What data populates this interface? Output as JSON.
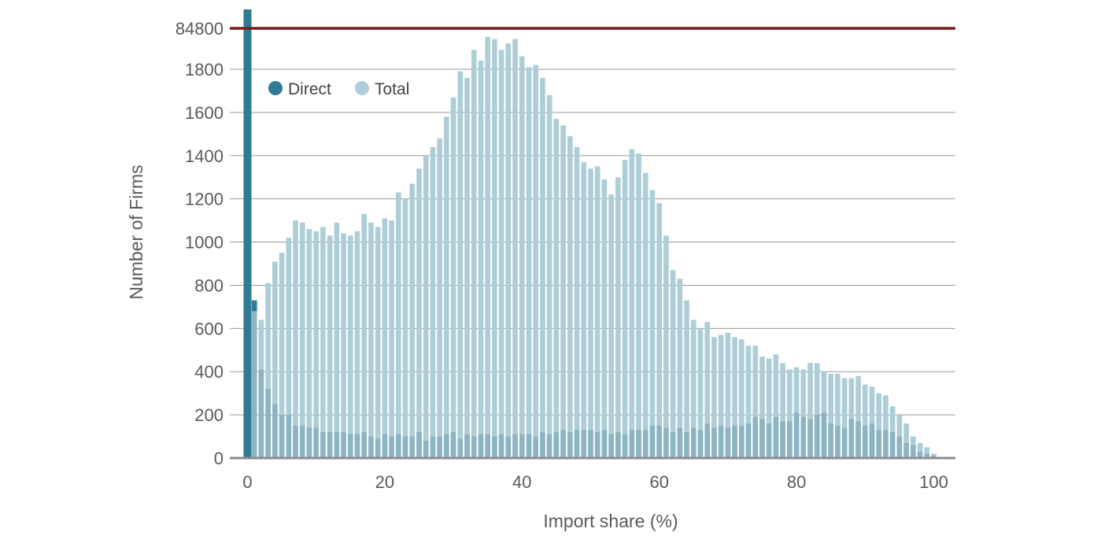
{
  "chart_data": {
    "type": "bar",
    "xlabel": "Import share (%)",
    "ylabel": "Number of Firms",
    "xlim": [
      -1,
      101
    ],
    "ylim": [
      0,
      2000
    ],
    "x_ticks": [
      0,
      20,
      40,
      60,
      80,
      100
    ],
    "y_ticks": [
      0,
      200,
      400,
      600,
      800,
      1000,
      1200,
      1400,
      1600,
      1800
    ],
    "axis_break": {
      "label": "84800",
      "bar_label": "Direct",
      "bar_x": 0
    },
    "grid": true,
    "legend": {
      "position": "top-left",
      "items": [
        "Direct",
        "Total"
      ]
    },
    "colors": {
      "Direct": "#2f7b93",
      "Total": "#adcdd7",
      "overlap": "#8cb4c3",
      "break_line": "#7a1c1c",
      "grid": "#9a9a9a"
    },
    "x": [
      0,
      1,
      2,
      3,
      4,
      5,
      6,
      7,
      8,
      9,
      10,
      11,
      12,
      13,
      14,
      15,
      16,
      17,
      18,
      19,
      20,
      21,
      22,
      23,
      24,
      25,
      26,
      27,
      28,
      29,
      30,
      31,
      32,
      33,
      34,
      35,
      36,
      37,
      38,
      39,
      40,
      41,
      42,
      43,
      44,
      45,
      46,
      47,
      48,
      49,
      50,
      51,
      52,
      53,
      54,
      55,
      56,
      57,
      58,
      59,
      60,
      61,
      62,
      63,
      64,
      65,
      66,
      67,
      68,
      69,
      70,
      71,
      72,
      73,
      74,
      75,
      76,
      77,
      78,
      79,
      80,
      81,
      82,
      83,
      84,
      85,
      86,
      87,
      88,
      89,
      90,
      91,
      92,
      93,
      94,
      95,
      96,
      97,
      98,
      99,
      100
    ],
    "series": [
      {
        "name": "Total",
        "values": [
          850,
          680,
          640,
          810,
          910,
          950,
          1020,
          1100,
          1090,
          1060,
          1050,
          1070,
          1030,
          1090,
          1040,
          1030,
          1050,
          1130,
          1090,
          1070,
          1110,
          1100,
          1230,
          1200,
          1270,
          1340,
          1400,
          1440,
          1480,
          1580,
          1670,
          1790,
          1760,
          1890,
          1840,
          1950,
          1940,
          1890,
          1920,
          1940,
          1860,
          1810,
          1820,
          1760,
          1680,
          1570,
          1540,
          1490,
          1440,
          1370,
          1340,
          1350,
          1290,
          1220,
          1300,
          1380,
          1430,
          1410,
          1320,
          1240,
          1180,
          1030,
          870,
          830,
          730,
          640,
          600,
          630,
          560,
          570,
          580,
          560,
          550,
          520,
          520,
          470,
          460,
          480,
          440,
          410,
          420,
          410,
          440,
          440,
          400,
          390,
          390,
          370,
          370,
          380,
          340,
          330,
          300,
          290,
          240,
          200,
          160,
          100,
          70,
          50,
          20
        ]
      },
      {
        "name": "Direct",
        "values": [
          2080,
          730,
          410,
          320,
          250,
          200,
          200,
          150,
          150,
          140,
          140,
          120,
          120,
          120,
          120,
          110,
          110,
          120,
          100,
          90,
          110,
          100,
          110,
          100,
          100,
          120,
          80,
          100,
          100,
          110,
          120,
          90,
          110,
          100,
          110,
          110,
          100,
          110,
          100,
          110,
          110,
          110,
          100,
          120,
          110,
          120,
          130,
          120,
          130,
          130,
          130,
          120,
          130,
          110,
          120,
          110,
          130,
          130,
          130,
          150,
          150,
          140,
          120,
          140,
          120,
          140,
          130,
          160,
          140,
          150,
          140,
          150,
          150,
          160,
          190,
          180,
          160,
          190,
          170,
          170,
          210,
          190,
          180,
          200,
          210,
          160,
          150,
          140,
          180,
          170,
          150,
          160,
          130,
          130,
          120,
          100,
          70,
          60,
          30,
          20,
          10
        ]
      }
    ]
  }
}
